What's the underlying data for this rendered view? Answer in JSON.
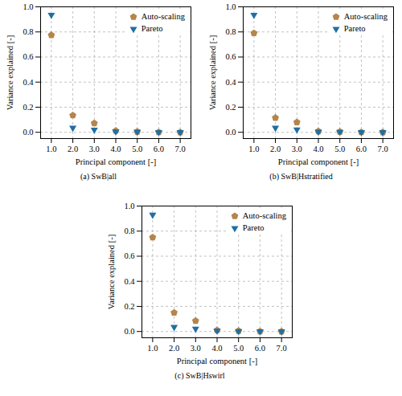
{
  "chart_data": [
    {
      "type": "scatter",
      "title": "(a) SwB|all",
      "xlabel": "Principal component [-]",
      "ylabel": "Variance explained [-]",
      "x": [
        1,
        2,
        3,
        4,
        5,
        6,
        7
      ],
      "series": [
        {
          "name": "Auto-scaling",
          "color": "#b5854b",
          "marker": "pentagon",
          "values": [
            0.775,
            0.135,
            0.072,
            0.012,
            0.005,
            0.001,
            0.0
          ]
        },
        {
          "name": "Pareto",
          "color": "#1f6fa3",
          "marker": "triangle-down",
          "values": [
            0.935,
            0.035,
            0.02,
            0.005,
            0.003,
            0.001,
            0.0
          ]
        }
      ],
      "xlim": [
        0.5,
        7.5
      ],
      "xticks": [
        1,
        2,
        3,
        4,
        5,
        6,
        7
      ],
      "ylim": [
        -0.05,
        1
      ],
      "yticks": [
        0,
        0.2,
        0.4,
        0.6,
        0.8,
        1
      ],
      "grid": true,
      "legend": "upper right"
    },
    {
      "type": "scatter",
      "title": "(b) SwB|Hstratified",
      "xlabel": "Principal component [-]",
      "ylabel": "Variance explained [-]",
      "x": [
        1,
        2,
        3,
        4,
        5,
        6,
        7
      ],
      "series": [
        {
          "name": "Auto-scaling",
          "color": "#b5854b",
          "marker": "pentagon",
          "values": [
            0.79,
            0.115,
            0.08,
            0.008,
            0.005,
            0.001,
            0.0
          ]
        },
        {
          "name": "Pareto",
          "color": "#1f6fa3",
          "marker": "triangle-down",
          "values": [
            0.935,
            0.035,
            0.022,
            0.004,
            0.002,
            0.001,
            0.0
          ]
        }
      ],
      "xlim": [
        0.5,
        7.5
      ],
      "xticks": [
        1,
        2,
        3,
        4,
        5,
        6,
        7
      ],
      "ylim": [
        -0.05,
        1
      ],
      "yticks": [
        0,
        0.2,
        0.4,
        0.6,
        0.8,
        1
      ],
      "grid": true,
      "legend": "upper right"
    },
    {
      "type": "scatter",
      "title": "(c) SwB|Hswirl",
      "xlabel": "Principal component [-]",
      "ylabel": "Variance explained [-]",
      "x": [
        1,
        2,
        3,
        4,
        5,
        6,
        7
      ],
      "series": [
        {
          "name": "Auto-scaling",
          "color": "#b5854b",
          "marker": "pentagon",
          "values": [
            0.75,
            0.15,
            0.085,
            0.01,
            0.005,
            0.001,
            0.0
          ]
        },
        {
          "name": "Pareto",
          "color": "#1f6fa3",
          "marker": "triangle-down",
          "values": [
            0.93,
            0.035,
            0.022,
            0.005,
            0.002,
            0.001,
            0.0
          ]
        }
      ],
      "xlim": [
        0.5,
        7.5
      ],
      "xticks": [
        1,
        2,
        3,
        4,
        5,
        6,
        7
      ],
      "ylim": [
        -0.05,
        1
      ],
      "yticks": [
        0,
        0.2,
        0.4,
        0.6,
        0.8,
        1
      ],
      "grid": true,
      "legend": "upper right"
    }
  ]
}
